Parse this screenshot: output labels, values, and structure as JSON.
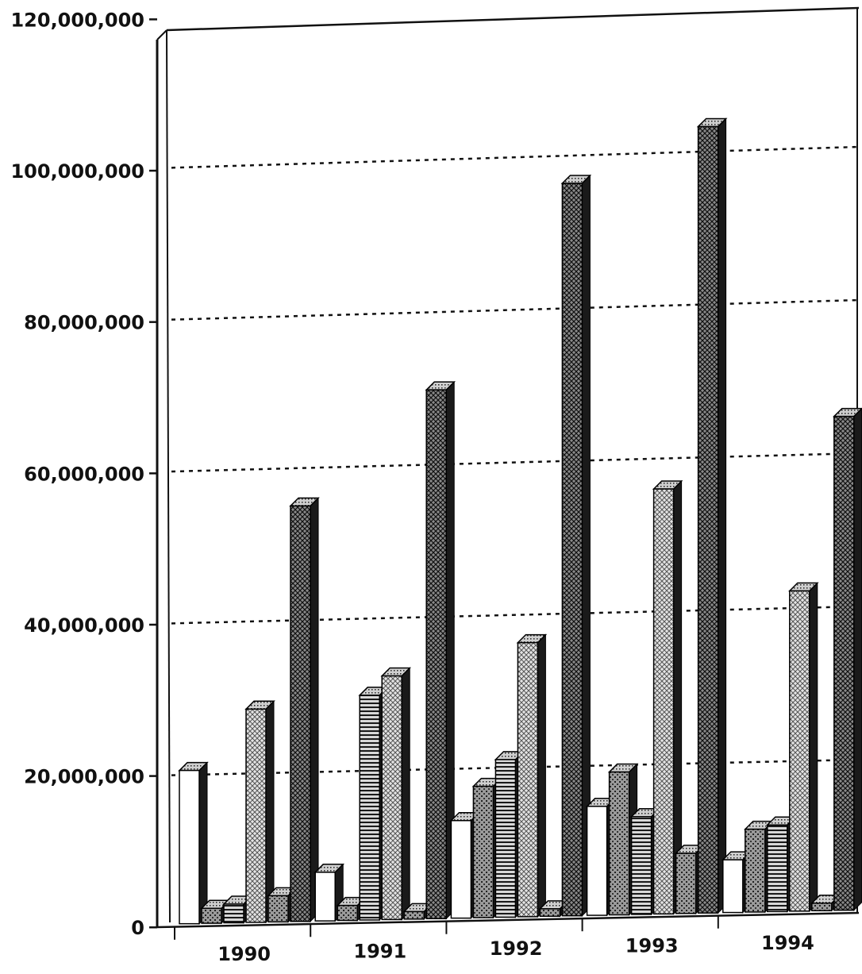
{
  "chart_data": {
    "type": "bar",
    "title": "",
    "xlabel": "",
    "ylabel": "",
    "ylim": [
      0,
      120000000
    ],
    "yticks": [
      {
        "value": 0,
        "label": "0"
      },
      {
        "value": 20000000,
        "label": "20,000,000"
      },
      {
        "value": 40000000,
        "label": "40,000,000"
      },
      {
        "value": 60000000,
        "label": "60,000,000"
      },
      {
        "value": 80000000,
        "label": "80,000,000"
      },
      {
        "value": 100000000,
        "label": "100,000,000"
      },
      {
        "value": 120000000,
        "label": "120,000,000"
      }
    ],
    "categories": [
      "1990",
      "1991",
      "1992",
      "1993",
      "1994"
    ],
    "grid": true,
    "legend": "none",
    "series": [
      {
        "pattern": "white",
        "values": [
          20500000,
          6500000,
          13000000,
          14500000,
          7000000
        ]
      },
      {
        "pattern": "dots",
        "values": [
          2000000,
          2000000,
          17500000,
          19000000,
          11000000
        ]
      },
      {
        "pattern": "hlines",
        "values": [
          2500000,
          30000000,
          21000000,
          13000000,
          11500000
        ]
      },
      {
        "pattern": "grid-light",
        "values": [
          28500000,
          32500000,
          36500000,
          56500000,
          42500000
        ]
      },
      {
        "pattern": "dots",
        "values": [
          3500000,
          1000000,
          1000000,
          8000000,
          1000000
        ]
      },
      {
        "pattern": "grid-dark",
        "values": [
          55500000,
          70500000,
          97500000,
          104500000,
          65500000
        ]
      }
    ]
  }
}
